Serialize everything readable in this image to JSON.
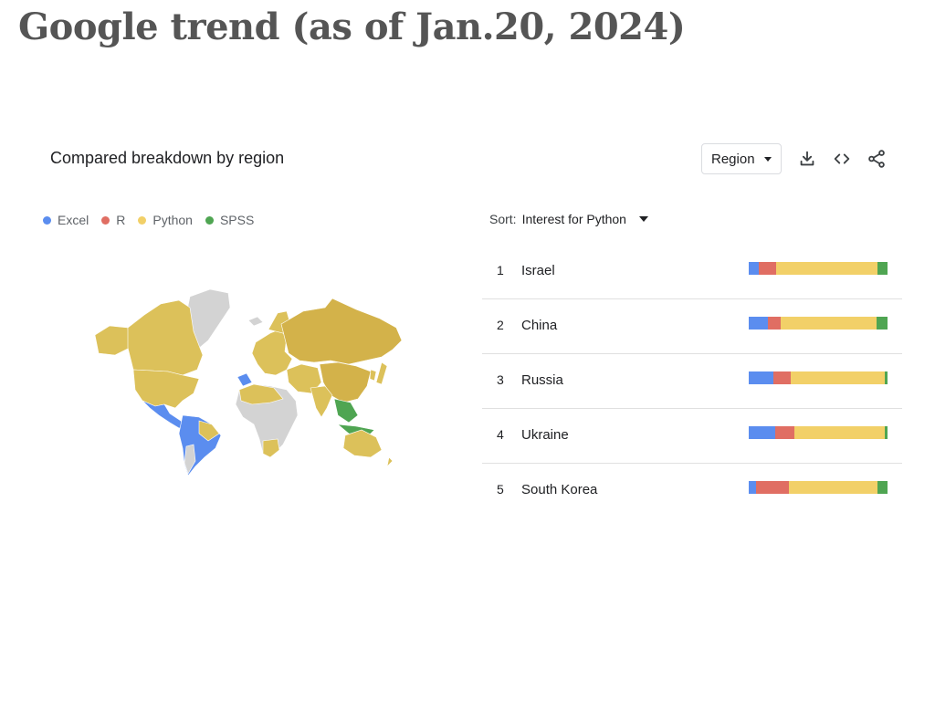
{
  "slide": {
    "title": "Google trend (as of Jan.20, 2024)"
  },
  "panel": {
    "title": "Compared breakdown by region"
  },
  "toolbar": {
    "region_select": "Region",
    "icons": [
      "download-icon",
      "embed-code-icon",
      "share-icon"
    ]
  },
  "sort": {
    "label": "Sort:",
    "value": "Interest for Python"
  },
  "chart_data": {
    "type": "bar",
    "stacked": true,
    "normalized": true,
    "legend": [
      "Excel",
      "R",
      "Python",
      "SPSS"
    ],
    "colors": {
      "Excel": "#5b8def",
      "R": "#e06e63",
      "Python": "#f2d068",
      "SPSS": "#4fa552"
    },
    "legend_placement": "top-left",
    "categories": [
      "Israel",
      "China",
      "Russia",
      "Ukraine",
      "South Korea"
    ],
    "ranks": [
      "1",
      "2",
      "3",
      "4",
      "5"
    ],
    "series": [
      {
        "name": "Excel",
        "values": [
          7,
          14,
          18,
          19,
          5
        ]
      },
      {
        "name": "R",
        "values": [
          13,
          9,
          12,
          14,
          24
        ]
      },
      {
        "name": "Python",
        "values": [
          73,
          69,
          68,
          65,
          64
        ]
      },
      {
        "name": "SPSS",
        "values": [
          7,
          8,
          2,
          2,
          7
        ]
      }
    ]
  },
  "map": {
    "description_colors": {
      "Excel": "#5b8def",
      "Python": "#dcc15a",
      "Python_dark": "#d3b24a",
      "SPSS": "#4fa552",
      "none": "#d3d3d3"
    }
  }
}
